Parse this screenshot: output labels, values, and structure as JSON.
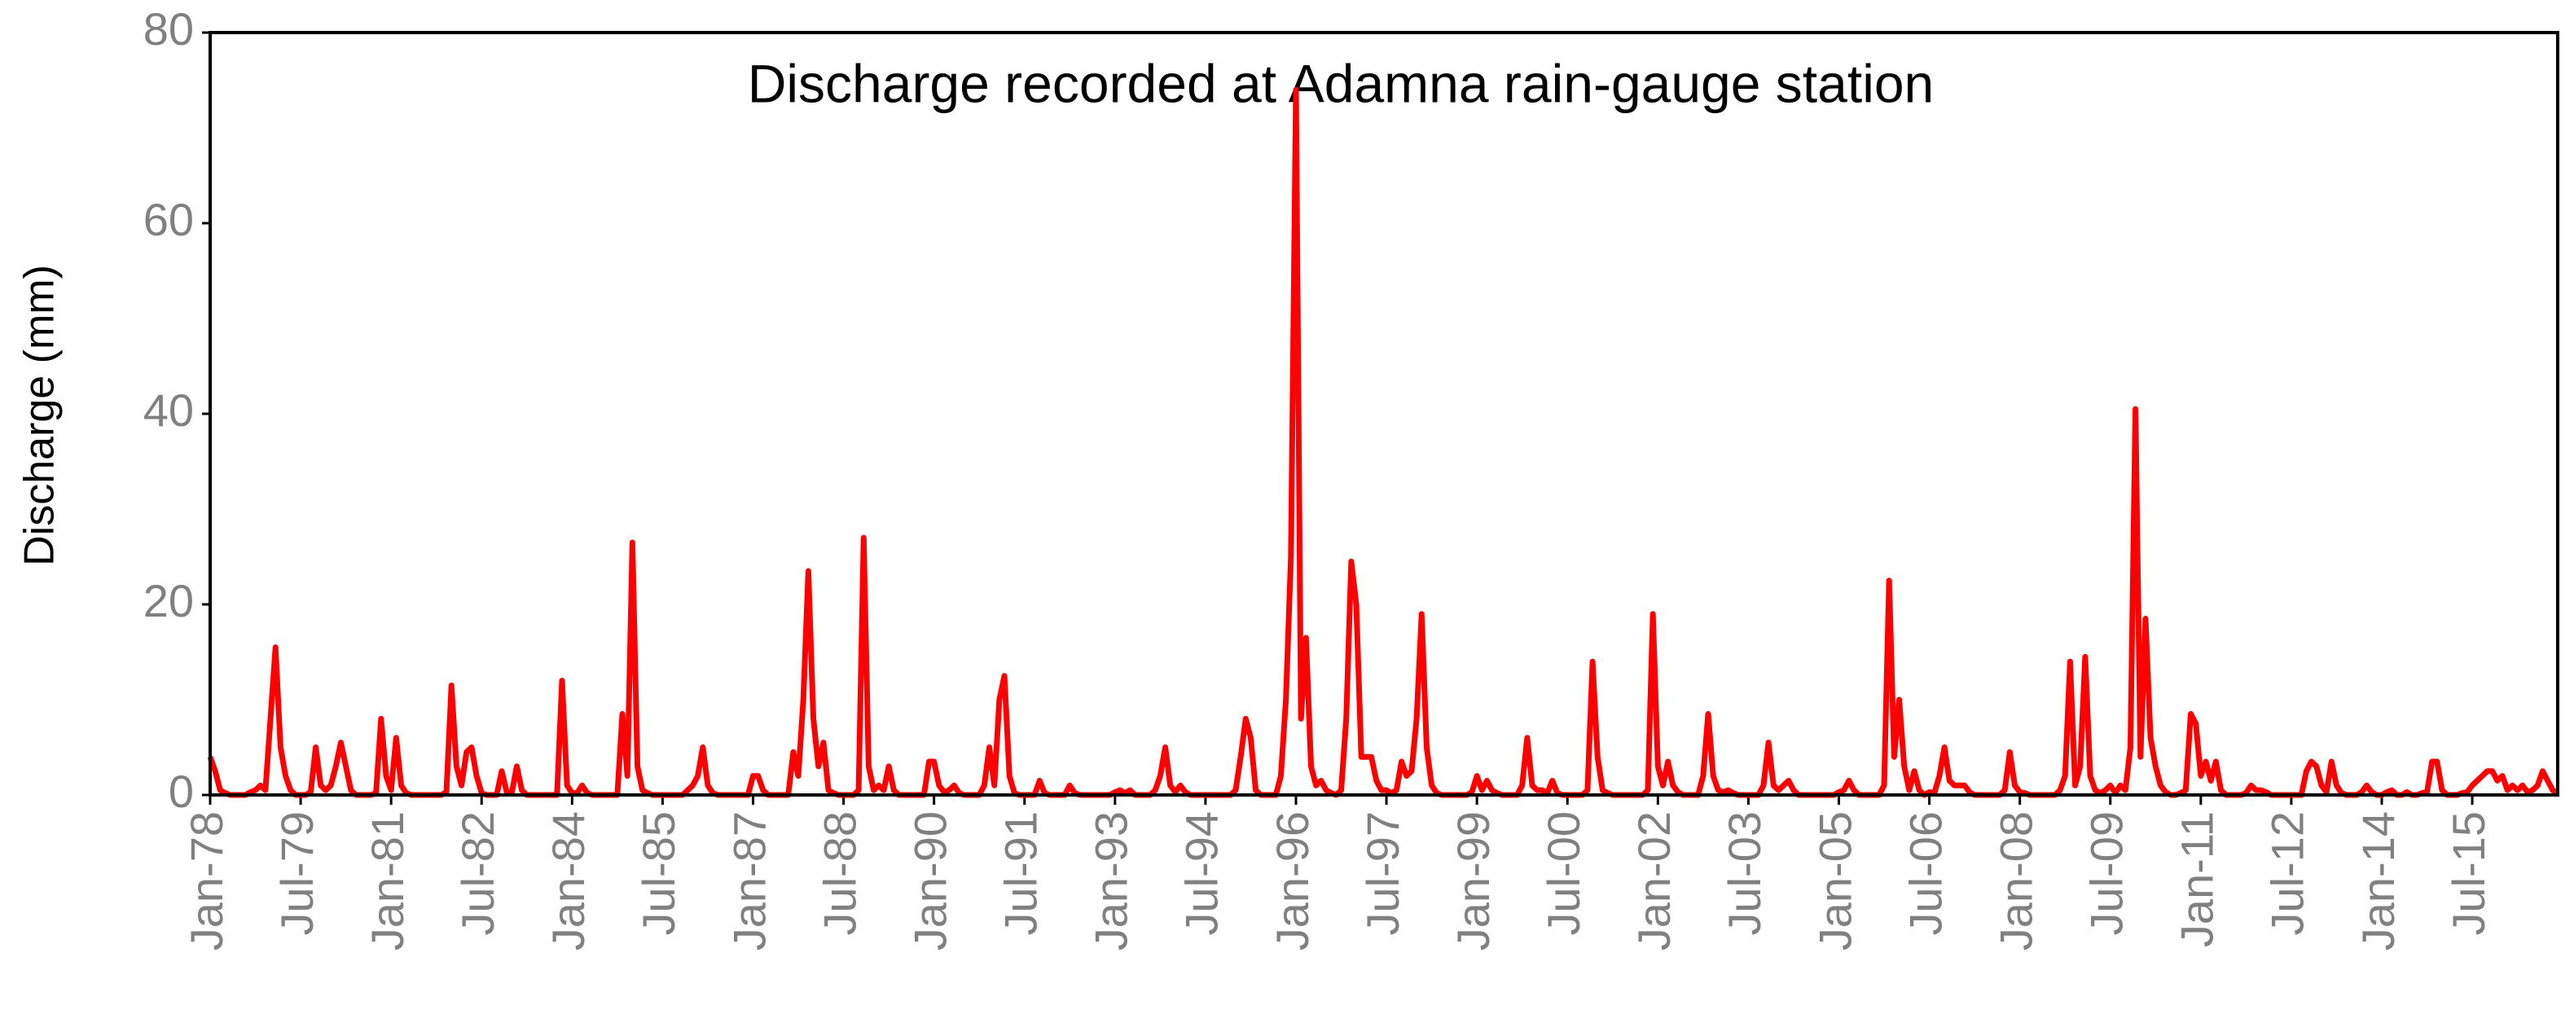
{
  "chart_data": {
    "type": "line",
    "title": "Discharge recorded at Adamna rain-gauge station",
    "y_label": "Discharge (mm)",
    "color": "#ff0000",
    "categories": [
      "Jan-78",
      null,
      null,
      null,
      null,
      null,
      null,
      null,
      null,
      null,
      null,
      null,
      null,
      null,
      null,
      null,
      null,
      null,
      "Jul-79",
      null,
      null,
      null,
      null,
      null,
      null,
      null,
      null,
      null,
      null,
      null,
      null,
      null,
      null,
      null,
      null,
      null,
      "Jan-81",
      null,
      null,
      null,
      null,
      null,
      null,
      null,
      null,
      null,
      null,
      null,
      null,
      null,
      null,
      null,
      null,
      null,
      "Jul-82",
      null,
      null,
      null,
      null,
      null,
      null,
      null,
      null,
      null,
      null,
      null,
      null,
      null,
      null,
      null,
      null,
      null,
      "Jan-84",
      null,
      null,
      null,
      null,
      null,
      null,
      null,
      null,
      null,
      null,
      null,
      null,
      null,
      null,
      null,
      null,
      null,
      "Jul-85",
      null,
      null,
      null,
      null,
      null,
      null,
      null,
      null,
      null,
      null,
      null,
      null,
      null,
      null,
      null,
      null,
      null,
      "Jan-87",
      null,
      null,
      null,
      null,
      null,
      null,
      null,
      null,
      null,
      null,
      null,
      null,
      null,
      null,
      null,
      null,
      null,
      "Jul-88",
      null,
      null,
      null,
      null,
      null,
      null,
      null,
      null,
      null,
      null,
      null,
      null,
      null,
      null,
      null,
      null,
      null,
      "Jan-90",
      null,
      null,
      null,
      null,
      null,
      null,
      null,
      null,
      null,
      null,
      null,
      null,
      null,
      null,
      null,
      null,
      null,
      "Jul-91",
      null,
      null,
      null,
      null,
      null,
      null,
      null,
      null,
      null,
      null,
      null,
      null,
      null,
      null,
      null,
      null,
      null,
      "Jan-93",
      null,
      null,
      null,
      null,
      null,
      null,
      null,
      null,
      null,
      null,
      null,
      null,
      null,
      null,
      null,
      null,
      null,
      "Jul-94",
      null,
      null,
      null,
      null,
      null,
      null,
      null,
      null,
      null,
      null,
      null,
      null,
      null,
      null,
      null,
      null,
      null,
      "Jan-96",
      null,
      null,
      null,
      null,
      null,
      null,
      null,
      null,
      null,
      null,
      null,
      null,
      null,
      null,
      null,
      null,
      null,
      "Jul-97",
      null,
      null,
      null,
      null,
      null,
      null,
      null,
      null,
      null,
      null,
      null,
      null,
      null,
      null,
      null,
      null,
      null,
      "Jan-99",
      null,
      null,
      null,
      null,
      null,
      null,
      null,
      null,
      null,
      null,
      null,
      null,
      null,
      null,
      null,
      null,
      null,
      "Jul-00",
      null,
      null,
      null,
      null,
      null,
      null,
      null,
      null,
      null,
      null,
      null,
      null,
      null,
      null,
      null,
      null,
      null,
      "Jan-02",
      null,
      null,
      null,
      null,
      null,
      null,
      null,
      null,
      null,
      null,
      null,
      null,
      null,
      null,
      null,
      null,
      null,
      "Jul-03",
      null,
      null,
      null,
      null,
      null,
      null,
      null,
      null,
      null,
      null,
      null,
      null,
      null,
      null,
      null,
      null,
      null,
      "Jan-05",
      null,
      null,
      null,
      null,
      null,
      null,
      null,
      null,
      null,
      null,
      null,
      null,
      null,
      null,
      null,
      null,
      null,
      "Jul-06",
      null,
      null,
      null,
      null,
      null,
      null,
      null,
      null,
      null,
      null,
      null,
      null,
      null,
      null,
      null,
      null,
      null,
      "Jan-08",
      null,
      null,
      null,
      null,
      null,
      null,
      null,
      null,
      null,
      null,
      null,
      null,
      null,
      null,
      null,
      null,
      null,
      "Jul-09",
      null,
      null,
      null,
      null,
      null,
      null,
      null,
      null,
      null,
      null,
      null,
      null,
      null,
      null,
      null,
      null,
      null,
      "Jan-11",
      null,
      null,
      null,
      null,
      null,
      null,
      null,
      null,
      null,
      null,
      null,
      null,
      null,
      null,
      null,
      null,
      null,
      "Jul-12",
      null,
      null,
      null,
      null,
      null,
      null,
      null,
      null,
      null,
      null,
      null,
      null,
      null,
      null,
      null,
      null,
      null,
      "Jan-14",
      null,
      null,
      null,
      null,
      null,
      null,
      null,
      null,
      null,
      null,
      null,
      null,
      null,
      null,
      null,
      null,
      null,
      "Jul-15",
      null,
      null,
      null,
      null,
      null,
      null,
      null,
      null,
      null,
      null,
      null,
      null,
      null,
      null,
      null,
      null,
      null
    ],
    "values": [
      4,
      2.5,
      0.5,
      0.2,
      0,
      0,
      0,
      0,
      0.3,
      0.5,
      1,
      0.5,
      8,
      15.5,
      5,
      2,
      0.5,
      0,
      0,
      0,
      0.3,
      5,
      1,
      0.5,
      1,
      3,
      5.5,
      3,
      0.5,
      0,
      0,
      0,
      0,
      0.2,
      8,
      2,
      0.5,
      6,
      1,
      0.2,
      0,
      0,
      0,
      0,
      0,
      0,
      0,
      0.3,
      11.5,
      3,
      1,
      4.5,
      5,
      2,
      0.2,
      0,
      0,
      0,
      2.5,
      0.3,
      0.2,
      3,
      0.5,
      0,
      0,
      0,
      0,
      0,
      0,
      0,
      12,
      1,
      0.2,
      0.2,
      1,
      0.2,
      0,
      0,
      0,
      0,
      0,
      0,
      8.5,
      2,
      26.5,
      3,
      0.5,
      0.2,
      0,
      0,
      0,
      0,
      0,
      0,
      0,
      0.5,
      1,
      2,
      5,
      1,
      0.2,
      0,
      0,
      0,
      0,
      0,
      0,
      0,
      2,
      2,
      0.5,
      0,
      0,
      0,
      0,
      0,
      4.5,
      2,
      10,
      23.5,
      8,
      3,
      5.5,
      0.5,
      0.2,
      0,
      0,
      0,
      0,
      0.5,
      27,
      3,
      0.5,
      1,
      0.5,
      3,
      0.5,
      0,
      0,
      0,
      0,
      0,
      0,
      3.5,
      3.5,
      1,
      0.3,
      0.5,
      1,
      0.2,
      0,
      0,
      0,
      0,
      1,
      5,
      1,
      10,
      12.5,
      2,
      0.2,
      0,
      0,
      0,
      0,
      1.5,
      0.2,
      0,
      0,
      0,
      0,
      1,
      0.2,
      0,
      0,
      0,
      0,
      0,
      0,
      0,
      0.3,
      0.5,
      0.2,
      0.5,
      0,
      0,
      0,
      0,
      0.5,
      2,
      5,
      1,
      0.3,
      1,
      0.3,
      0,
      0,
      0,
      0,
      0,
      0,
      0,
      0,
      0,
      0.5,
      4,
      8,
      6,
      0.5,
      0,
      0,
      0,
      0,
      2,
      10,
      25,
      74,
      8,
      16.5,
      3,
      1,
      1.5,
      0.5,
      0.2,
      0,
      0.5,
      8,
      24.5,
      20,
      4,
      4,
      4,
      1.5,
      0.5,
      0.5,
      0.2,
      0.5,
      3.5,
      2,
      2.5,
      8,
      19,
      5,
      1,
      0.2,
      0,
      0,
      0,
      0,
      0,
      0,
      0.3,
      2,
      0.5,
      1.5,
      0.5,
      0.2,
      0,
      0,
      0,
      0,
      1,
      6,
      1,
      0.5,
      0.5,
      0.2,
      1.5,
      0.2,
      0,
      0,
      0,
      0,
      0,
      0.5,
      14,
      4,
      0.5,
      0.2,
      0,
      0,
      0,
      0,
      0,
      0,
      0,
      0.5,
      19,
      3,
      1,
      3.5,
      1,
      0.3,
      0,
      0,
      0,
      0,
      2,
      8.5,
      2,
      0.5,
      0.3,
      0.5,
      0.2,
      0,
      0,
      0,
      0,
      0,
      1,
      5.5,
      1,
      0.5,
      1,
      1.5,
      0.5,
      0,
      0,
      0,
      0,
      0,
      0,
      0,
      0,
      0.3,
      0.5,
      1.5,
      0.5,
      0,
      0,
      0,
      0,
      0,
      1,
      22.5,
      4,
      10,
      3,
      0.5,
      2.5,
      0.5,
      0,
      0.3,
      0.2,
      2,
      5,
      1.5,
      1,
      1,
      1,
      0.3,
      0,
      0,
      0,
      0,
      0,
      0,
      0.5,
      4.5,
      1,
      0.3,
      0.2,
      0,
      0,
      0,
      0,
      0,
      0,
      0.5,
      2,
      14,
      1,
      3,
      14.5,
      2,
      0.5,
      0.2,
      0.5,
      1,
      0.2,
      1,
      0.5,
      5,
      40.5,
      4,
      18.5,
      6,
      3,
      1,
      0.3,
      0,
      0,
      0.2,
      0.5,
      8.5,
      7.5,
      2,
      3.5,
      1.5,
      3.5,
      0.5,
      0,
      0,
      0,
      0,
      0.2,
      1,
      0.5,
      0.5,
      0.3,
      0,
      0,
      0,
      0,
      0,
      0,
      0,
      2.5,
      3.5,
      3,
      1,
      0.3,
      3.5,
      1,
      0.2,
      0,
      0,
      0,
      0.3,
      1,
      0.3,
      0,
      0,
      0.3,
      0.5,
      0,
      0,
      0.3,
      0,
      0,
      0.2,
      0.3,
      3.5,
      3.5,
      0.5,
      0,
      0,
      0,
      0.2,
      0.3,
      1,
      1.5,
      2,
      2.5,
      2.5,
      1.5,
      2,
      0.5,
      1,
      0.5,
      1,
      0.3,
      0.5,
      1,
      2.5,
      1.5,
      0.5,
      0.2
    ],
    "ylim": [
      0,
      80
    ],
    "yticks": [
      0,
      20,
      40,
      60,
      80
    ]
  }
}
